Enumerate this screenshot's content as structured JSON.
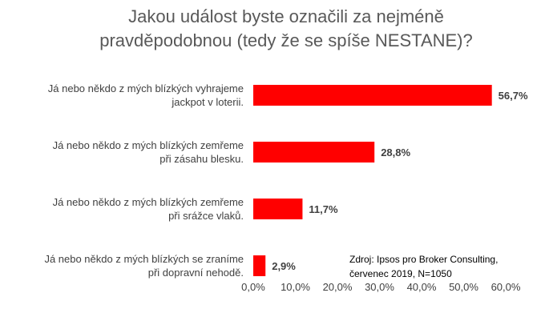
{
  "chart_data": {
    "type": "bar",
    "orientation": "horizontal",
    "title_lines": [
      "Jakou událost byste označili za nejméně",
      "pravděpodobnou (tedy že se spíše NESTANE)?"
    ],
    "categories": [
      [
        "Já nebo někdo z mých blízkých vyhrajeme",
        "jackpot v loterii."
      ],
      [
        "Já nebo někdo z mých blízkých zemřeme",
        "při zásahu blesku."
      ],
      [
        "Já nebo někdo z mých blízkých zemřeme",
        "při srážce vlaků."
      ],
      [
        "Já nebo někdo z mých blízkých se zraníme",
        "při dopravní nehodě."
      ]
    ],
    "values": [
      56.7,
      28.8,
      11.7,
      2.9
    ],
    "value_labels": [
      "56,7%",
      "28,8%",
      "11,7%",
      "2,9%"
    ],
    "xlim": [
      0,
      60
    ],
    "xticks": [
      0,
      10,
      20,
      30,
      40,
      50,
      60
    ],
    "xtick_labels": [
      "0,0%",
      "10,0%",
      "20,0%",
      "30,0%",
      "40,0%",
      "50,0%",
      "60,0%"
    ],
    "bar_color": "#ff0000",
    "grid": false,
    "legend": "none",
    "annotation_lines": [
      "Zdroj: Ipsos pro Broker Consulting,",
      "červenec 2019, N=1050"
    ]
  }
}
